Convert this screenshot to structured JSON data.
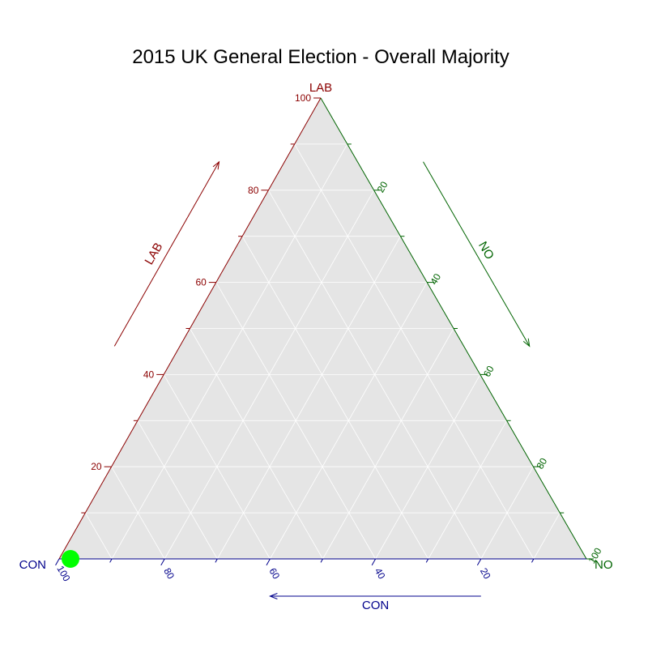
{
  "chart_data": {
    "type": "ternary",
    "title": "2015 UK General Election - Overall Majority",
    "axes": {
      "left": {
        "label": "CON",
        "arrow_label": "CON",
        "color": "#00008B"
      },
      "top": {
        "label": "LAB",
        "arrow_label": "LAB",
        "color": "#8B0000"
      },
      "right": {
        "label": "NO",
        "arrow_label": "NO",
        "color": "#006400"
      }
    },
    "range": [
      0,
      100
    ],
    "major_ticks": [
      20,
      40,
      60,
      80,
      100
    ],
    "minor_step": 10,
    "grid_step": 10,
    "grid": true,
    "background_color": "#E5E5E5",
    "grid_color": "#FFFFFF",
    "tick_labels": {
      "left": [
        "100",
        "80",
        "60",
        "40",
        "20"
      ],
      "top": [
        "100",
        "80",
        "60",
        "40",
        "20"
      ],
      "right": [
        "20",
        "40",
        "60",
        "80",
        "100"
      ]
    },
    "points": [
      {
        "CON": 100,
        "LAB": 0,
        "NO": 0,
        "color": "#00FF00"
      }
    ]
  }
}
